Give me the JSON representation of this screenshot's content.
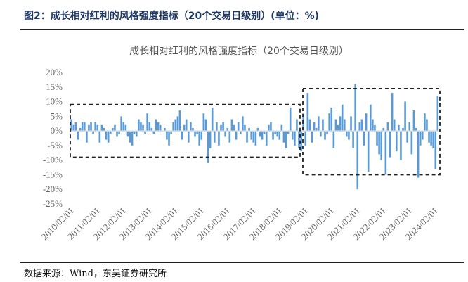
{
  "figure": {
    "title": "图2：成长相对红利的风格强度指标（20个交易日级别）(单位：%)",
    "source": "数据来源：Wind，东吴证券研究所"
  },
  "chart_data": {
    "type": "area",
    "title": "成长相对红利的风格强度指标（20个交易日级别）",
    "xlabel": "",
    "ylabel": "",
    "x_start": "2010/02",
    "frequency": "monthly",
    "x_tick_labels": [
      "2010/02/01",
      "2011/02/01",
      "2012/02/01",
      "2013/02/01",
      "2014/02/01",
      "2015/02/01",
      "2016/02/01",
      "2017/02/01",
      "2018/02/01",
      "2019/02/01",
      "2020/02/01",
      "2021/02/01",
      "2022/02/01",
      "2023/02/01",
      "2024/02/01"
    ],
    "y_tick_labels": [
      "20%",
      "15%",
      "10%",
      "5%",
      "0%",
      "-5%",
      "-10%",
      "-15%",
      "-20%",
      "-25%"
    ],
    "ylim": [
      -25,
      20
    ],
    "y_unit": "%",
    "grid": false,
    "legend": "none",
    "color": "#5b9bd5",
    "values": [
      4,
      2,
      3,
      -3,
      1,
      3,
      3,
      -4,
      2,
      3,
      -1,
      3,
      2,
      -4,
      2,
      1,
      -3,
      -4,
      -1,
      1,
      2,
      -2,
      -1,
      5,
      3,
      2,
      -2,
      -4,
      -5,
      -1,
      -2,
      4,
      3,
      2,
      -1,
      6,
      3,
      1,
      -1,
      4,
      3,
      2,
      0,
      1,
      -3,
      -5,
      -1,
      3,
      4,
      5,
      7,
      -3,
      2,
      4,
      -4,
      3,
      1,
      -2,
      -1,
      -5,
      -3,
      6,
      4,
      -11,
      -6,
      8,
      -4,
      3,
      -5,
      2,
      3,
      -2,
      1,
      -4,
      4,
      2,
      -3,
      3,
      -1,
      5,
      2,
      -4,
      1,
      -3,
      -4,
      -5,
      1,
      -2,
      -3,
      -1,
      -5,
      2,
      3,
      -3,
      -1,
      -2,
      -3,
      2,
      -4,
      -6,
      -1,
      8,
      -3,
      -5,
      4,
      -6,
      -7,
      6,
      -5,
      13,
      4,
      -4,
      3,
      1,
      5,
      -2,
      4,
      -3,
      -1,
      6,
      8,
      -6,
      4,
      2,
      5,
      9,
      4,
      -2,
      -3,
      5,
      -6,
      16,
      -20,
      3,
      4,
      -5,
      6,
      -14,
      9,
      4,
      2,
      -5,
      -8,
      -10,
      1,
      -15,
      3,
      -9,
      13,
      4,
      -7,
      2,
      -10,
      1,
      10,
      -4,
      3,
      -8,
      7,
      1,
      -16,
      -5,
      -3,
      6,
      4,
      -4,
      -5,
      -6,
      -13,
      12
    ],
    "annotations": [
      {
        "type": "dashed-box",
        "period": "2010/02 – 2019/01",
        "y_range": [
          -9,
          9
        ]
      },
      {
        "type": "dashed-box",
        "period": "2019/02 – 2024/03",
        "y_range": [
          -15,
          14.5
        ]
      }
    ]
  }
}
